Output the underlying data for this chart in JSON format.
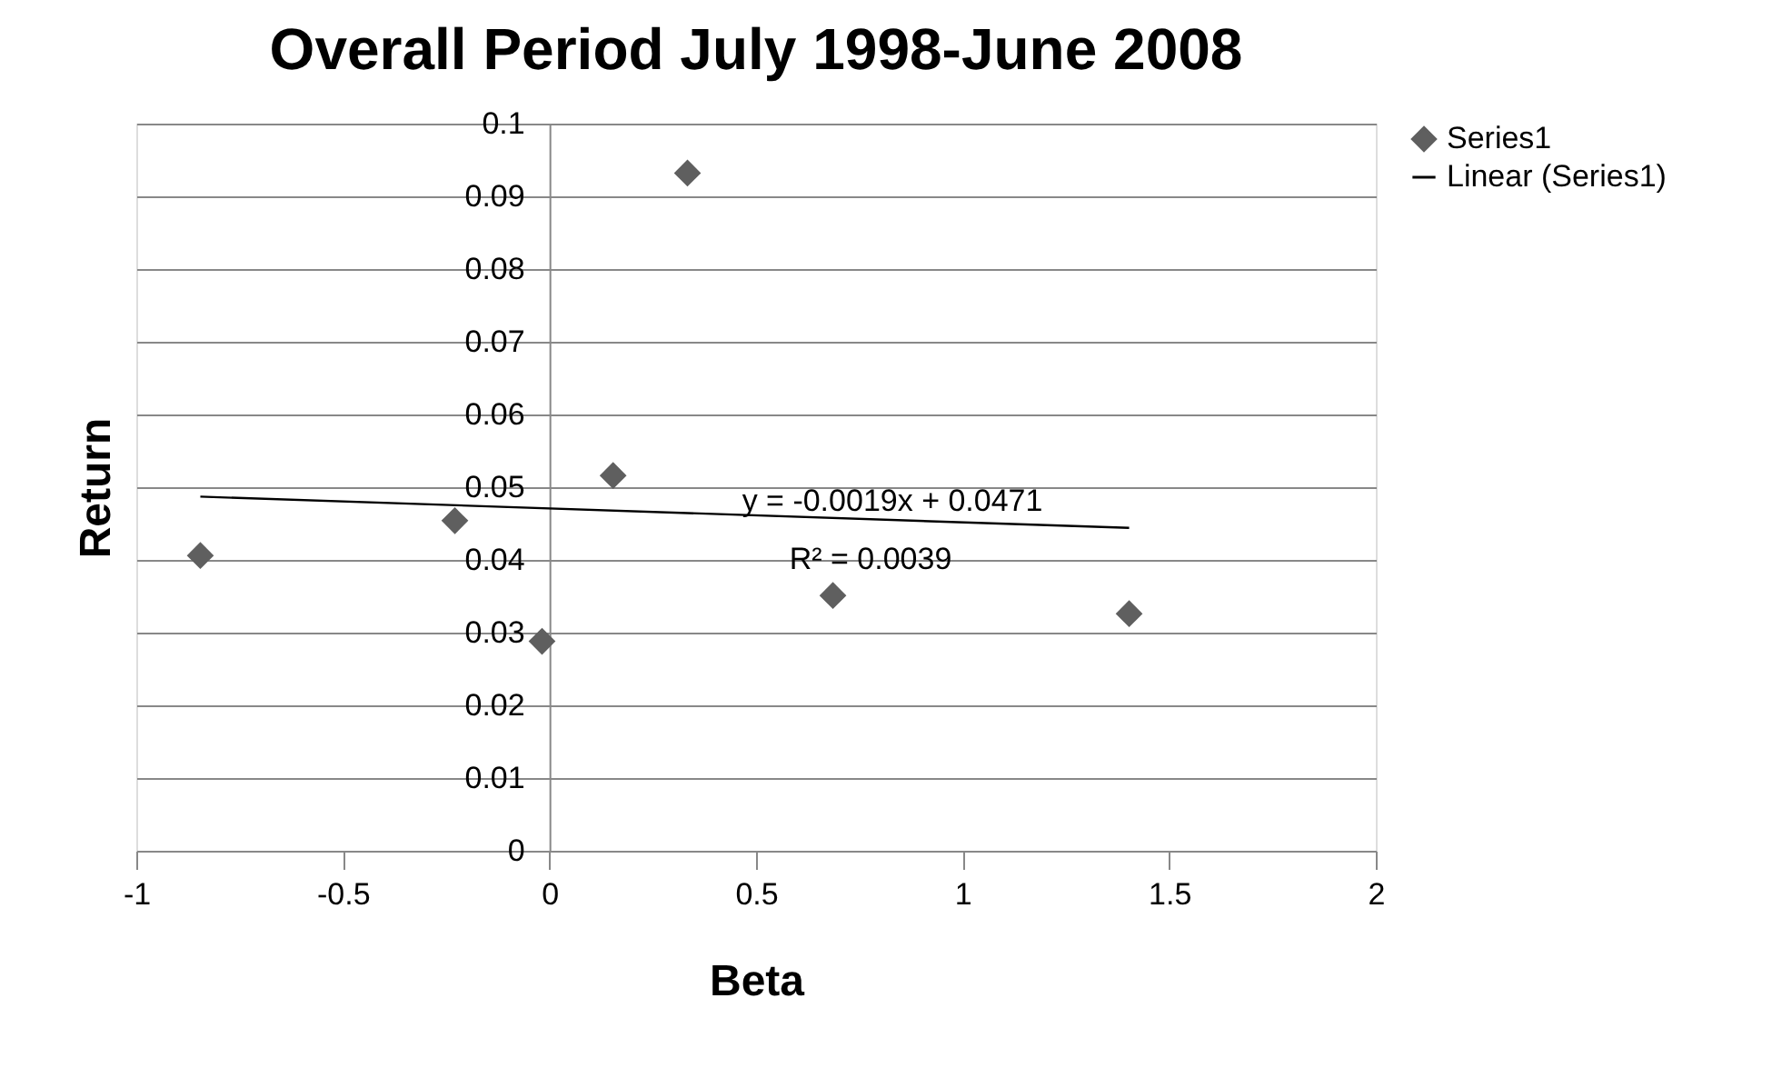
{
  "chart_data": {
    "type": "scatter",
    "title": "Overall Period July 1998-June 2008",
    "xlabel": "Beta",
    "ylabel": "Return",
    "series": [
      {
        "name": "Series1",
        "color": "#5f5f5f",
        "marker": "diamond",
        "x": [
          -0.845,
          -0.229,
          -0.018,
          0.154,
          0.334,
          0.686,
          1.403
        ],
        "values": [
          0.0406,
          0.0454,
          0.0288,
          0.0516,
          0.0932,
          0.0351,
          0.0326
        ]
      },
      {
        "name": "Linear (Series1)",
        "type": "line",
        "color": "#000000",
        "line_style": "solid",
        "x": [
          -0.845,
          1.403
        ],
        "values": [
          0.0487,
          0.0444
        ]
      }
    ],
    "annotations": [
      "y = -0.0019x + 0.0471",
      "R² = 0.0039"
    ],
    "xlim": [
      -1,
      2
    ],
    "xticks": [
      -1,
      -0.5,
      0,
      0.5,
      1,
      1.5,
      2
    ],
    "ylim": [
      0,
      0.1
    ],
    "yticks": [
      0,
      0.01,
      0.02,
      0.03,
      0.04,
      0.05,
      0.06,
      0.07,
      0.08,
      0.09,
      0.1
    ],
    "grid": "y",
    "legend": "right"
  }
}
